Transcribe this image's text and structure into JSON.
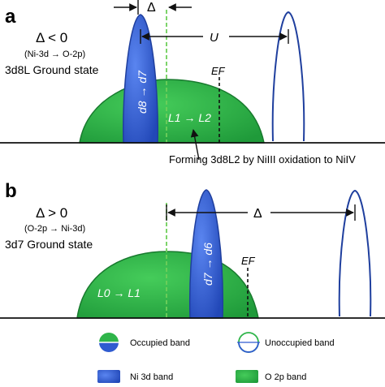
{
  "panel_a": {
    "letter": "a",
    "delta": "Δ < 0",
    "transition": "(Ni-3d → O-2p)",
    "ground_state": "3d8L Ground state",
    "delta_symbol": "Δ",
    "u_label": "U",
    "ni_band_label": "d8 → d7",
    "o_band_label": "L1 → L2",
    "fermi_label": "EF",
    "forming_note": "Forming 3d8L2 by NiIII oxidation to NiIV"
  },
  "panel_b": {
    "letter": "b",
    "delta": "Δ > 0",
    "transition": "(O-2p → Ni-3d)",
    "ground_state": "3d7 Ground state",
    "delta_symbol": "Δ",
    "ni_band_label": "d7 → d6",
    "o_band_label": "L0 → L1",
    "fermi_label": "EF"
  },
  "legend": {
    "occupied": "Occupied band",
    "unoccupied": "Unoccupied band",
    "ni_band": "Ni 3d band",
    "o_band": "O 2p band"
  },
  "colors": {
    "ni_band": "#2f5bd0",
    "o_band": "#2fb54a",
    "outline_blue": "#1f3f9e",
    "outline_green": "#187a2e",
    "dashed_green": "#6fcf5a"
  }
}
